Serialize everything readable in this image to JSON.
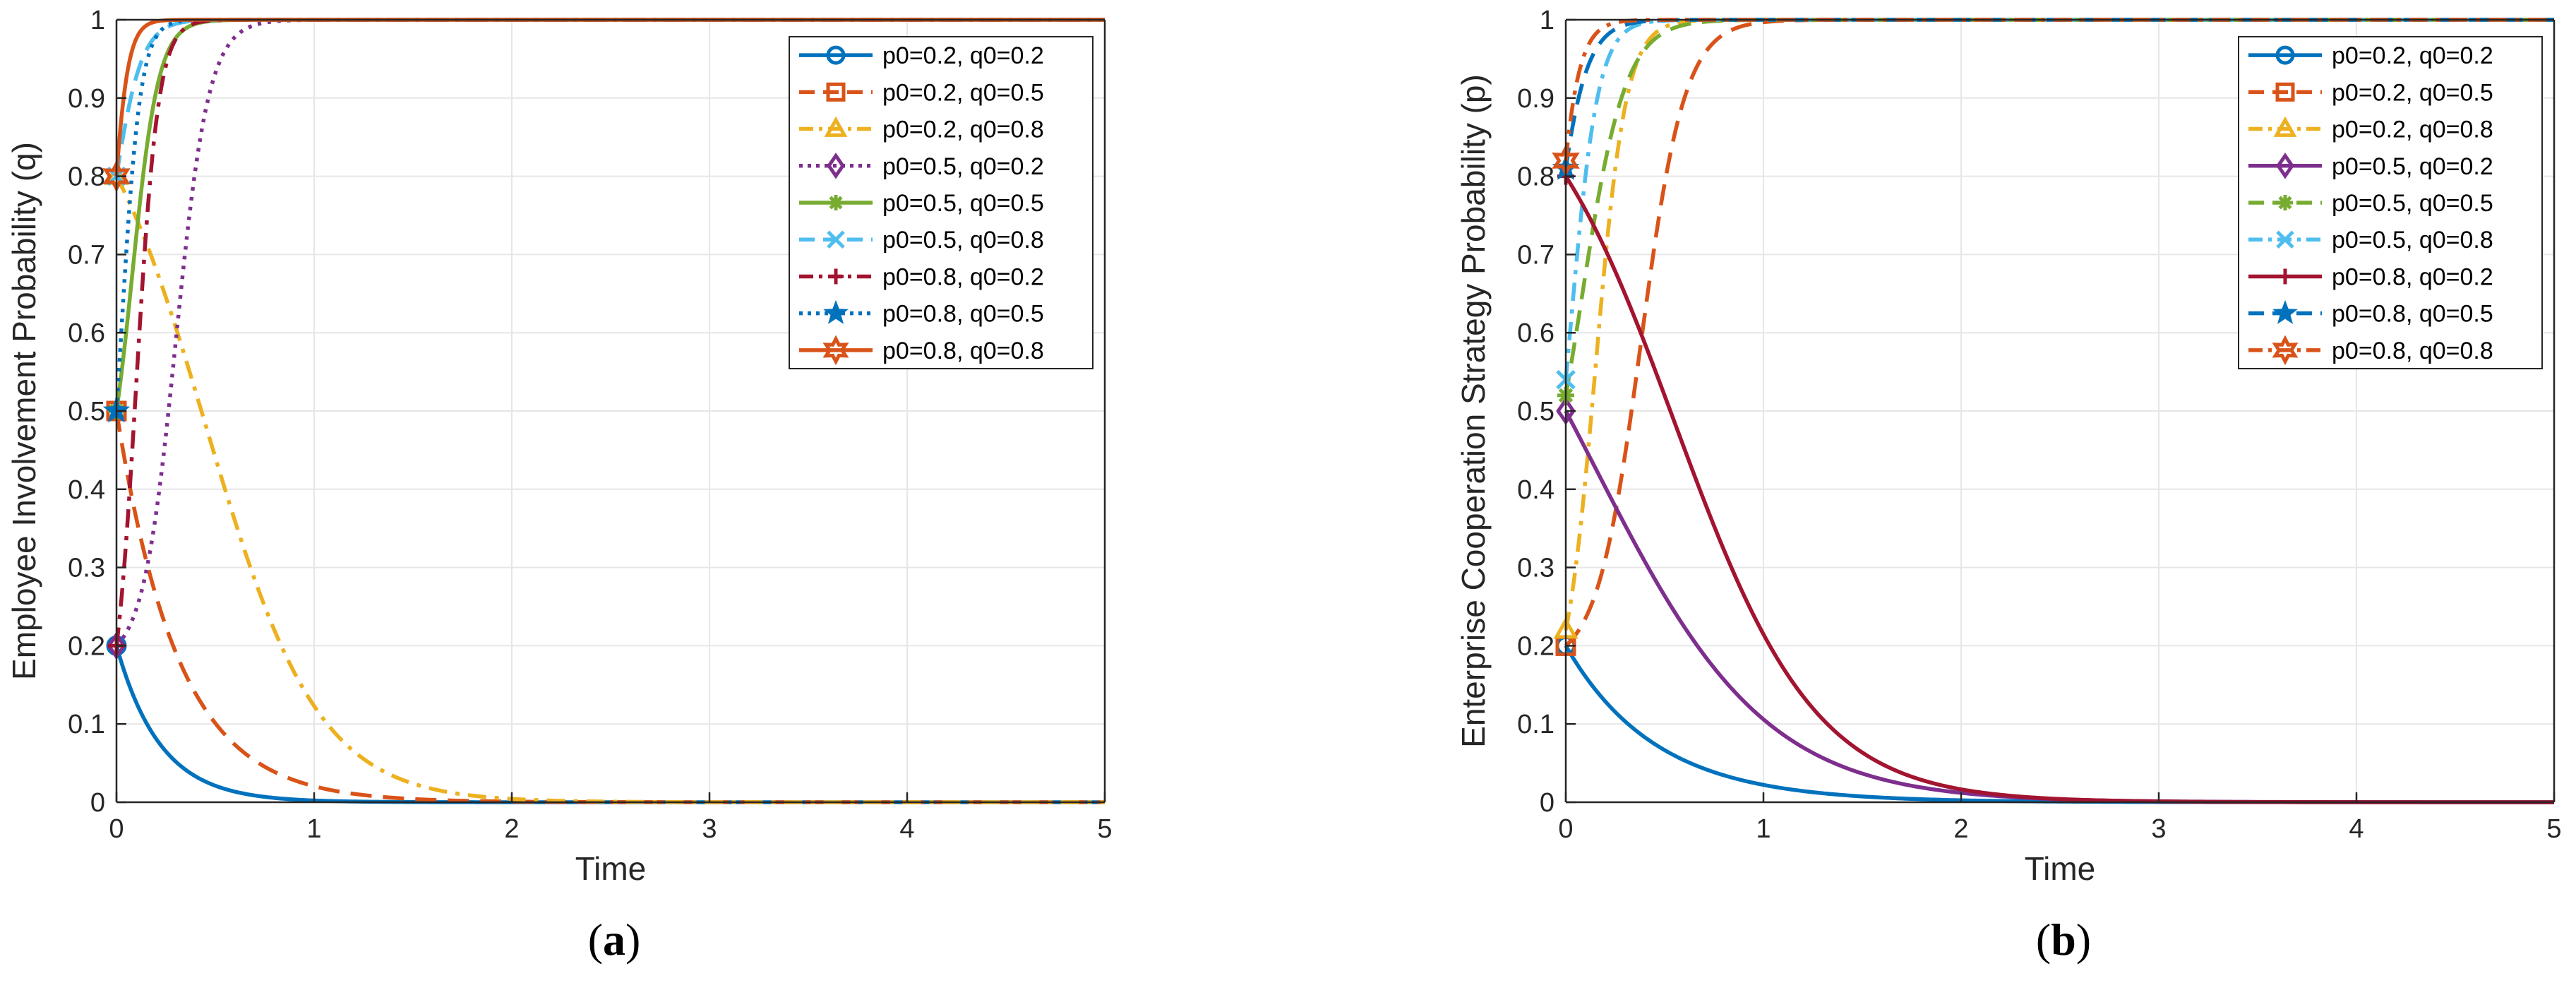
{
  "figure": {
    "captions": [
      {
        "open": "(",
        "letter": "a",
        "close": ")"
      },
      {
        "open": "(",
        "letter": "b",
        "close": ")"
      }
    ]
  },
  "chart_data": [
    {
      "type": "line",
      "panel": "a",
      "title": "",
      "xlabel": "Time",
      "ylabel": "Employee Involvement Probability (q)",
      "xlim": [
        0,
        5
      ],
      "ylim": [
        0,
        1
      ],
      "xticks": [
        "0",
        "1",
        "2",
        "3",
        "4",
        "5"
      ],
      "yticks": [
        "0",
        "0.1",
        "0.2",
        "0.3",
        "0.4",
        "0.5",
        "0.6",
        "0.7",
        "0.8",
        "0.9",
        "1"
      ],
      "grid": true,
      "legend_position": "top-right",
      "series": [
        {
          "name": "p0=0.2, q0=0.2",
          "color": "#0072BD",
          "dash": "solid",
          "marker": "circle",
          "start": 0.2,
          "end": 0,
          "rate": 4.5
        },
        {
          "name": "p0=0.2, q0=0.5",
          "color": "#D95319",
          "dash": "dash",
          "marker": "square",
          "start": 0.5,
          "end": 0,
          "rate": 3.2
        },
        {
          "name": "p0=0.2, q0=0.8",
          "color": "#EDB120",
          "dash": "dashdot",
          "marker": "triangle",
          "start": 0.8,
          "end": 0,
          "rate": 3.5,
          "mid": 0.45
        },
        {
          "name": "p0=0.5, q0=0.2",
          "color": "#7E2F8E",
          "dash": "dot",
          "marker": "diamond",
          "start": 0.2,
          "end": 1,
          "rate": 12,
          "mid": 0.3
        },
        {
          "name": "p0=0.5, q0=0.5",
          "color": "#77AC30",
          "dash": "solid",
          "marker": "asterisk",
          "start": 0.5,
          "end": 1,
          "rate": 15,
          "mid": 0.08
        },
        {
          "name": "p0=0.5, q0=0.8",
          "color": "#4DBEEE",
          "dash": "dash",
          "marker": "x",
          "start": 0.8,
          "end": 1,
          "rate": 14,
          "mid": -0.02
        },
        {
          "name": "p0=0.8, q0=0.2",
          "color": "#A2142F",
          "dash": "dashdot",
          "marker": "plus",
          "start": 0.2,
          "end": 1,
          "rate": 18,
          "mid": 0.1
        },
        {
          "name": "p0=0.8, q0=0.5",
          "color": "#0072BD",
          "dash": "dot",
          "marker": "pentagram",
          "start": 0.5,
          "end": 1,
          "rate": 20,
          "mid": 0.02
        },
        {
          "name": "p0=0.8, q0=0.8",
          "color": "#D95319",
          "dash": "solid",
          "marker": "hexagram",
          "start": 0.8,
          "end": 1,
          "rate": 24,
          "mid": -0.04
        }
      ]
    },
    {
      "type": "line",
      "panel": "b",
      "title": "",
      "xlabel": "Time",
      "ylabel": "Enterprise Cooperation Strategy Probability  (p)",
      "xlim": [
        0,
        5
      ],
      "ylim": [
        0,
        1
      ],
      "xticks": [
        "0",
        "1",
        "2",
        "3",
        "4",
        "5"
      ],
      "yticks": [
        "0",
        "0.1",
        "0.2",
        "0.3",
        "0.4",
        "0.5",
        "0.6",
        "0.7",
        "0.8",
        "0.9",
        "1"
      ],
      "grid": true,
      "legend_position": "top-right",
      "series": [
        {
          "name": "p0=0.2, q0=0.2",
          "color": "#0072BD",
          "dash": "solid",
          "marker": "circle",
          "start": 0.2,
          "end": 0,
          "rate": 2.2
        },
        {
          "name": "p0=0.2, q0=0.5",
          "color": "#D95319",
          "dash": "dash",
          "marker": "square",
          "start": 0.2,
          "end": 1,
          "rate": 9,
          "mid": 0.38
        },
        {
          "name": "p0=0.2, q0=0.8",
          "color": "#EDB120",
          "dash": "dashdot",
          "marker": "triangle",
          "start": 0.22,
          "end": 1,
          "rate": 13,
          "mid": 0.15
        },
        {
          "name": "p0=0.5, q0=0.2",
          "color": "#7E2F8E",
          "dash": "solid",
          "marker": "diamond",
          "start": 0.5,
          "end": 0,
          "rate": 2.3,
          "mid": 0.15
        },
        {
          "name": "p0=0.5, q0=0.5",
          "color": "#77AC30",
          "dash": "dash",
          "marker": "asterisk",
          "start": 0.52,
          "end": 1,
          "rate": 9,
          "mid": 0.08
        },
        {
          "name": "p0=0.5, q0=0.8",
          "color": "#4DBEEE",
          "dash": "dashdot",
          "marker": "x",
          "start": 0.54,
          "end": 1,
          "rate": 14,
          "mid": 0.02
        },
        {
          "name": "p0=0.8, q0=0.2",
          "color": "#A2142F",
          "dash": "solid",
          "marker": "plus",
          "start": 0.8,
          "end": 0,
          "rate": 2.8,
          "mid": 0.55
        },
        {
          "name": "p0=0.8, q0=0.5",
          "color": "#0072BD",
          "dash": "dash",
          "marker": "pentagram",
          "start": 0.81,
          "end": 1,
          "rate": 12,
          "mid": -0.1
        },
        {
          "name": "p0=0.8, q0=0.8",
          "color": "#D95319",
          "dash": "dashdot",
          "marker": "hexagram",
          "start": 0.82,
          "end": 1,
          "rate": 16,
          "mid": -0.12
        }
      ]
    }
  ]
}
